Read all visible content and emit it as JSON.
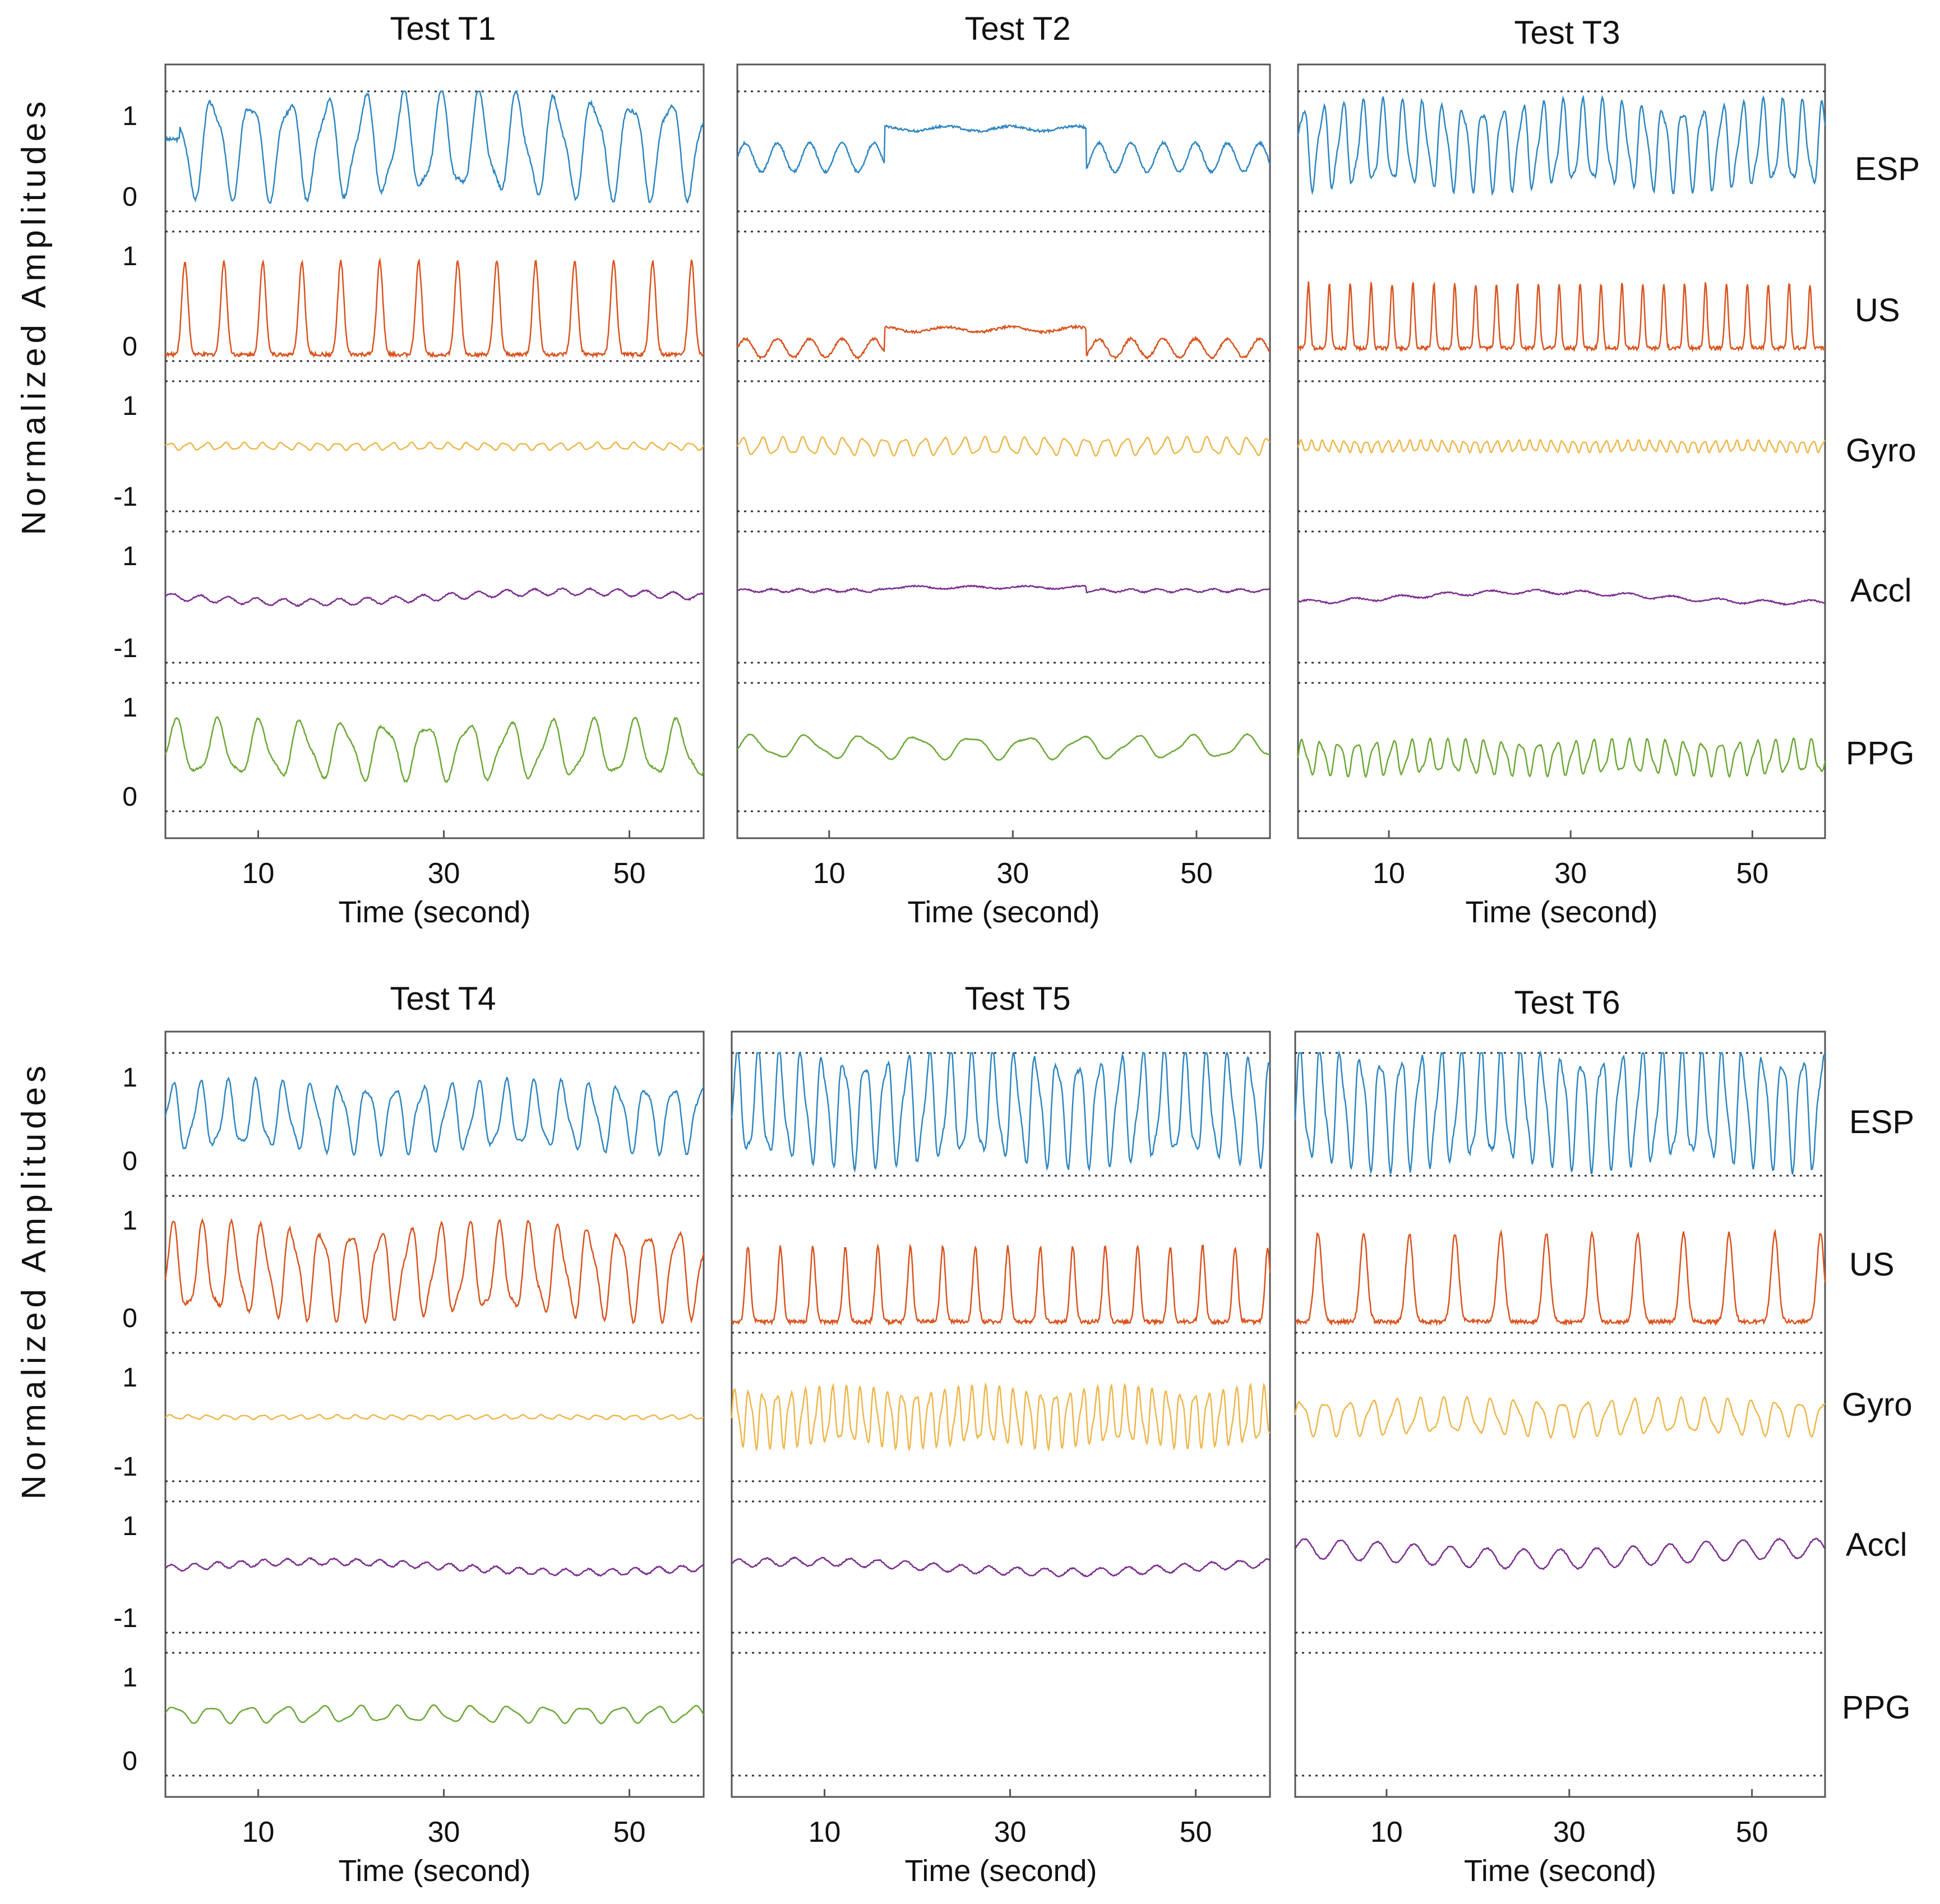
{
  "figure": {
    "ylabel": "Normalized  Amplitudes",
    "xlabel": "Time (second)",
    "xticks": [
      10,
      30,
      50
    ],
    "xlim": [
      0,
      58
    ]
  },
  "colors": {
    "ESP": "#2e86c1",
    "US": "#d9531e",
    "Gyro": "#efb64a",
    "Accl": "#7b2d8e",
    "PPG": "#6aa834",
    "axis": "#555555",
    "dotted": "#333333"
  },
  "signal_labels": {
    "row1": [
      "ESP",
      "US",
      "Gyro",
      "Accl",
      "PPG"
    ],
    "row2": [
      "ESP",
      "US",
      "Gyro",
      "Accl",
      "PPG"
    ]
  },
  "tick_labels": {
    "ESP": [
      "1",
      "0"
    ],
    "US": [
      "1",
      "0"
    ],
    "Gyro": [
      "1",
      "-1"
    ],
    "Accl": [
      "1",
      "-1"
    ],
    "PPG": [
      "1",
      "0"
    ]
  },
  "chart_data": [
    {
      "type": "line",
      "title": "Test T1",
      "xlabel": "Time (second)",
      "ylabel": "Normalized  Amplitudes",
      "series": [
        {
          "name": "ESP",
          "ylim": [
            0,
            1
          ],
          "pattern": "osc",
          "base": 0.55,
          "amp": 0.38,
          "period": 4.1,
          "start": 1.5
        },
        {
          "name": "US",
          "ylim": [
            0,
            1
          ],
          "pattern": "spikes",
          "base": 0.05,
          "amp": 0.72,
          "period": 4.2,
          "start": 2.5
        },
        {
          "name": "Gyro",
          "ylim": [
            -1,
            1
          ],
          "pattern": "osc",
          "base": 0.0,
          "amp": 0.05,
          "period": 2.0
        },
        {
          "name": "Accl",
          "ylim": [
            -1,
            1
          ],
          "pattern": "drift",
          "base": 0.0,
          "amp": 0.05,
          "period": 3.0
        },
        {
          "name": "PPG",
          "ylim": [
            0,
            1
          ],
          "pattern": "osc",
          "base": 0.48,
          "amp": 0.2,
          "period": 4.5
        }
      ]
    },
    {
      "type": "line",
      "title": "Test T2",
      "xlabel": "Time (second)",
      "ylabel": "Normalized  Amplitudes",
      "series": [
        {
          "name": "ESP",
          "ylim": [
            0,
            1
          ],
          "pattern": "plateau",
          "base": 0.45,
          "amp": 0.2,
          "period": 3.5
        },
        {
          "name": "US",
          "ylim": [
            0,
            1
          ],
          "pattern": "plateau",
          "base": 0.1,
          "amp": 0.12,
          "period": 3.5
        },
        {
          "name": "Gyro",
          "ylim": [
            -1,
            1
          ],
          "pattern": "osc",
          "base": 0.0,
          "amp": 0.12,
          "period": 2.2
        },
        {
          "name": "Accl",
          "ylim": [
            -1,
            1
          ],
          "pattern": "plateau",
          "base": 0.1,
          "amp": 0.04,
          "period": 3.0
        },
        {
          "name": "PPG",
          "ylim": [
            0,
            1
          ],
          "pattern": "osc",
          "base": 0.5,
          "amp": 0.08,
          "period": 6.0
        }
      ]
    },
    {
      "type": "line",
      "title": "Test T3",
      "xlabel": "Time (second)",
      "ylabel": "Normalized  Amplitudes",
      "series": [
        {
          "name": "ESP",
          "ylim": [
            0,
            1
          ],
          "pattern": "osc",
          "base": 0.55,
          "amp": 0.32,
          "period": 2.2
        },
        {
          "name": "US",
          "ylim": [
            0,
            1
          ],
          "pattern": "spikes",
          "base": 0.1,
          "amp": 0.5,
          "period": 2.3
        },
        {
          "name": "Gyro",
          "ylim": [
            -1,
            1
          ],
          "pattern": "osc",
          "base": 0.0,
          "amp": 0.08,
          "period": 1.2
        },
        {
          "name": "Accl",
          "ylim": [
            -1,
            1
          ],
          "pattern": "drift",
          "base": 0.0,
          "amp": 0.03,
          "period": 5.0
        },
        {
          "name": "PPG",
          "ylim": [
            0,
            1
          ],
          "pattern": "osc",
          "base": 0.42,
          "amp": 0.12,
          "period": 2.0
        }
      ]
    },
    {
      "type": "line",
      "title": "Test T4",
      "xlabel": "Time (second)",
      "ylabel": "Normalized  Amplitudes",
      "series": [
        {
          "name": "ESP",
          "ylim": [
            0,
            1
          ],
          "pattern": "osc",
          "base": 0.48,
          "amp": 0.25,
          "period": 3.0
        },
        {
          "name": "US",
          "ylim": [
            0,
            1
          ],
          "pattern": "osc",
          "base": 0.45,
          "amp": 0.3,
          "period": 3.2
        },
        {
          "name": "Gyro",
          "ylim": [
            -1,
            1
          ],
          "pattern": "osc",
          "base": 0.0,
          "amp": 0.03,
          "period": 2.0
        },
        {
          "name": "Accl",
          "ylim": [
            -1,
            1
          ],
          "pattern": "drift",
          "base": 0.0,
          "amp": 0.05,
          "period": 2.5
        },
        {
          "name": "PPG",
          "ylim": [
            0,
            1
          ],
          "pattern": "osc",
          "base": 0.5,
          "amp": 0.06,
          "period": 4.0
        }
      ]
    },
    {
      "type": "line",
      "title": "Test T5",
      "xlabel": "Time (second)",
      "ylabel": "Normalized  Amplitudes",
      "series": [
        {
          "name": "ESP",
          "ylim": [
            0,
            1
          ],
          "pattern": "osc",
          "base": 0.55,
          "amp": 0.4,
          "period": 2.3
        },
        {
          "name": "US",
          "ylim": [
            0,
            1
          ],
          "pattern": "spikes",
          "base": 0.08,
          "amp": 0.55,
          "period": 3.5
        },
        {
          "name": "Gyro",
          "ylim": [
            -1,
            1
          ],
          "pattern": "osc",
          "base": 0.0,
          "amp": 0.4,
          "period": 1.5
        },
        {
          "name": "Accl",
          "ylim": [
            -1,
            1
          ],
          "pattern": "drift",
          "base": 0.0,
          "amp": 0.06,
          "period": 3.0
        },
        {
          "name": "PPG",
          "ylim": [
            0,
            1
          ],
          "pattern": "none",
          "base": 0.5,
          "amp": 0.0,
          "period": 1.0
        }
      ]
    },
    {
      "type": "line",
      "title": "Test T6",
      "xlabel": "Time (second)",
      "ylabel": "Normalized  Amplitudes",
      "series": [
        {
          "name": "ESP",
          "ylim": [
            0,
            1
          ],
          "pattern": "osc",
          "base": 0.55,
          "amp": 0.42,
          "period": 2.2
        },
        {
          "name": "US",
          "ylim": [
            0,
            1
          ],
          "pattern": "spikes",
          "base": 0.08,
          "amp": 0.65,
          "period": 5.0
        },
        {
          "name": "Gyro",
          "ylim": [
            -1,
            1
          ],
          "pattern": "osc",
          "base": 0.0,
          "amp": 0.25,
          "period": 2.6
        },
        {
          "name": "Accl",
          "ylim": [
            -1,
            1
          ],
          "pattern": "drift",
          "base": 0.2,
          "amp": 0.15,
          "period": 4.0
        },
        {
          "name": "PPG",
          "ylim": [
            0,
            1
          ],
          "pattern": "none",
          "base": 0.5,
          "amp": 0.0,
          "period": 1.0
        }
      ]
    }
  ]
}
